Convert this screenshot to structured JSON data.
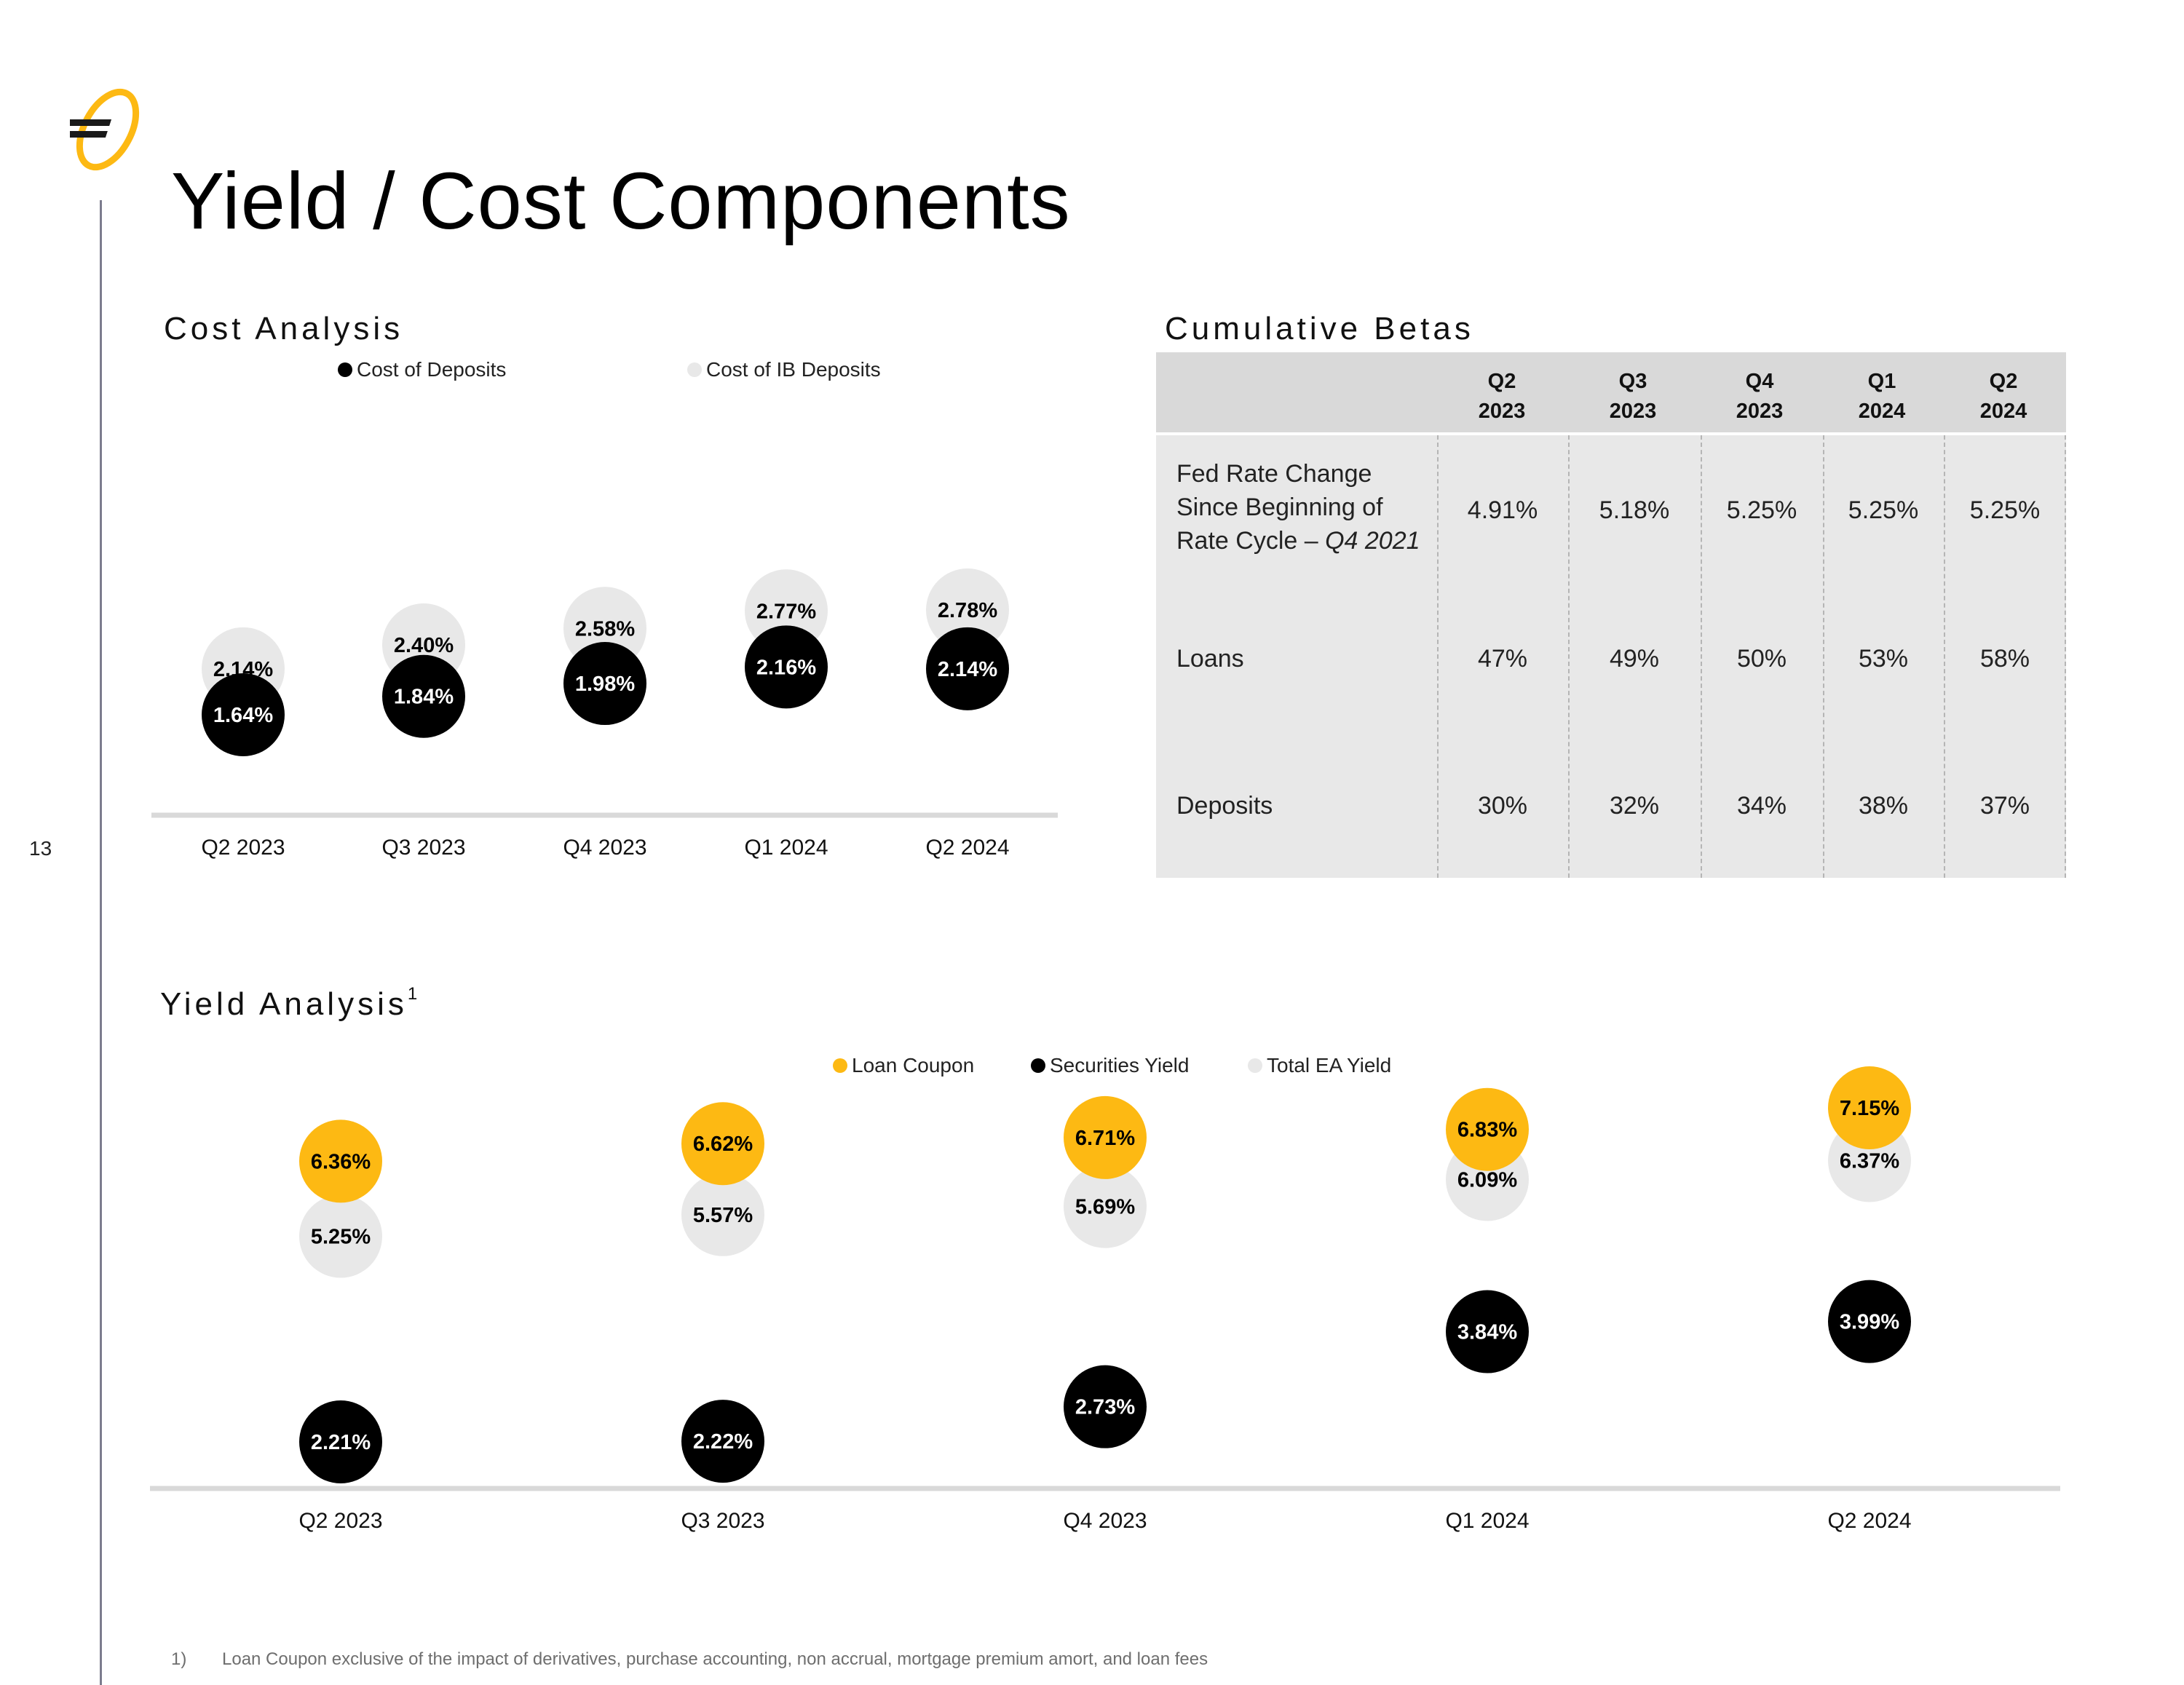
{
  "page": {
    "title": "Yield / Cost Components",
    "page_number": "13",
    "footnote_number": "1)",
    "footnote_text": "Loan Coupon exclusive of the impact of  derivatives, purchase accounting, non accrual, mortgage premium amort, and loan fees"
  },
  "colors": {
    "gold": "#FDB913",
    "black": "#000000",
    "light_gray": "#E8E8E8",
    "axis": "#D9D9D9"
  },
  "chart_data": [
    {
      "type": "scatter",
      "title": "Cost Analysis",
      "categories": [
        "Q2 2023",
        "Q3 2023",
        "Q4 2023",
        "Q1 2024",
        "Q2 2024"
      ],
      "series": [
        {
          "name": "Cost of Deposits",
          "values": [
            1.64,
            1.84,
            1.98,
            2.16,
            2.14
          ],
          "labels": [
            "1.64%",
            "1.84%",
            "1.98%",
            "2.16%",
            "2.14%"
          ],
          "color": "#000000",
          "text_color": "#ffffff"
        },
        {
          "name": "Cost of IB Deposits",
          "values": [
            2.14,
            2.4,
            2.58,
            2.77,
            2.78
          ],
          "labels": [
            "2.14%",
            "2.40%",
            "2.58%",
            "2.77%",
            "2.78%"
          ],
          "color": "#E8E8E8",
          "text_color": "#000000"
        }
      ],
      "legend": "top",
      "grid": false
    },
    {
      "type": "scatter",
      "title": "Yield Analysis",
      "title_superscript": "1",
      "categories": [
        "Q2 2023",
        "Q3 2023",
        "Q4 2023",
        "Q1 2024",
        "Q2 2024"
      ],
      "series": [
        {
          "name": "Loan Coupon",
          "values": [
            6.36,
            6.62,
            6.71,
            6.83,
            7.15
          ],
          "labels": [
            "6.36%",
            "6.62%",
            "6.71%",
            "6.83%",
            "7.15%"
          ],
          "color": "#FDB913",
          "text_color": "#000000"
        },
        {
          "name": "Securities Yield",
          "values": [
            2.21,
            2.22,
            2.73,
            3.84,
            3.99
          ],
          "labels": [
            "2.21%",
            "2.22%",
            "2.73%",
            "3.84%",
            "3.99%"
          ],
          "color": "#000000",
          "text_color": "#ffffff"
        },
        {
          "name": "Total EA Yield",
          "values": [
            5.25,
            5.57,
            5.69,
            6.09,
            6.37
          ],
          "labels": [
            "5.25%",
            "5.57%",
            "5.69%",
            "6.09%",
            "6.37%"
          ],
          "color": "#E8E8E8",
          "text_color": "#000000"
        }
      ],
      "legend": "top",
      "grid": false
    },
    {
      "type": "table",
      "title": "Cumulative Betas",
      "columns": [
        {
          "line1": "Q2",
          "line2": "2023"
        },
        {
          "line1": "Q3",
          "line2": "2023"
        },
        {
          "line1": "Q4",
          "line2": "2023"
        },
        {
          "line1": "Q1",
          "line2": "2024"
        },
        {
          "line1": "Q2",
          "line2": "2024"
        }
      ],
      "rows": [
        {
          "label_line1": "Fed Rate Change",
          "label_line2": "Since Beginning of",
          "label_line3_prefix": "Rate Cycle – ",
          "label_line3_italic": "Q4 2021",
          "values": [
            "4.91%",
            "5.18%",
            "5.25%",
            "5.25%",
            "5.25%"
          ]
        },
        {
          "label": "Loans",
          "values": [
            "47%",
            "49%",
            "50%",
            "53%",
            "58%"
          ]
        },
        {
          "label": "Deposits",
          "values": [
            "30%",
            "32%",
            "34%",
            "38%",
            "37%"
          ]
        }
      ]
    }
  ]
}
